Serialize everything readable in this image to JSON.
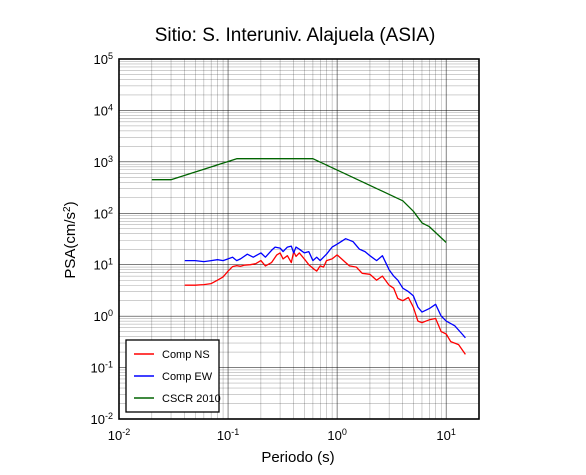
{
  "chart_data": {
    "type": "line",
    "title": "Sitio: S. Interuniv. Alajuela (ASIA)",
    "xlabel": "Periodo (s)",
    "ylabel": {
      "base": "PSA(cm/s",
      "sup": "2",
      "end": ")"
    },
    "x_scale": "log",
    "y_scale": "log",
    "xlim": [
      0.01,
      20
    ],
    "ylim": [
      0.01,
      100000
    ],
    "x_ticks": [
      {
        "value": 0.01,
        "base": "10",
        "exp": "-2"
      },
      {
        "value": 0.1,
        "base": "10",
        "exp": "-1"
      },
      {
        "value": 1,
        "base": "10",
        "exp": "0"
      },
      {
        "value": 10,
        "base": "10",
        "exp": "1"
      }
    ],
    "y_ticks": [
      {
        "value": 0.01,
        "base": "10",
        "exp": "-2"
      },
      {
        "value": 0.1,
        "base": "10",
        "exp": "-1"
      },
      {
        "value": 1,
        "base": "10",
        "exp": "0"
      },
      {
        "value": 10,
        "base": "10",
        "exp": "1"
      },
      {
        "value": 100,
        "base": "10",
        "exp": "2"
      },
      {
        "value": 1000,
        "base": "10",
        "exp": "3"
      },
      {
        "value": 10000,
        "base": "10",
        "exp": "4"
      },
      {
        "value": 100000,
        "base": "10",
        "exp": "5"
      }
    ],
    "grid": true,
    "legend_position": "bottom-left",
    "series": [
      {
        "name": "Comp NS",
        "color": "#ff0000",
        "points": [
          [
            0.04,
            4.0
          ],
          [
            0.05,
            4.0
          ],
          [
            0.06,
            4.1
          ],
          [
            0.07,
            4.3
          ],
          [
            0.08,
            5.0
          ],
          [
            0.09,
            5.8
          ],
          [
            0.1,
            7.5
          ],
          [
            0.11,
            9.2
          ],
          [
            0.12,
            9.6
          ],
          [
            0.13,
            9.3
          ],
          [
            0.14,
            9.8
          ],
          [
            0.16,
            10.0
          ],
          [
            0.18,
            10.5
          ],
          [
            0.2,
            12.0
          ],
          [
            0.22,
            9.5
          ],
          [
            0.25,
            11.0
          ],
          [
            0.28,
            15.5
          ],
          [
            0.3,
            17.0
          ],
          [
            0.32,
            13.0
          ],
          [
            0.35,
            15.0
          ],
          [
            0.38,
            11.0
          ],
          [
            0.4,
            18.0
          ],
          [
            0.42,
            14.5
          ],
          [
            0.45,
            17.0
          ],
          [
            0.5,
            13.0
          ],
          [
            0.55,
            10.0
          ],
          [
            0.6,
            8.5
          ],
          [
            0.65,
            7.5
          ],
          [
            0.7,
            9.5
          ],
          [
            0.75,
            9.0
          ],
          [
            0.8,
            12.0
          ],
          [
            0.9,
            13.0
          ],
          [
            1.0,
            15.5
          ],
          [
            1.1,
            13.0
          ],
          [
            1.2,
            11.0
          ],
          [
            1.3,
            9.5
          ],
          [
            1.5,
            9.0
          ],
          [
            1.7,
            6.8
          ],
          [
            2.0,
            6.5
          ],
          [
            2.3,
            5.0
          ],
          [
            2.6,
            6.0
          ],
          [
            3.0,
            4.0
          ],
          [
            3.3,
            3.5
          ],
          [
            3.6,
            2.2
          ],
          [
            4.0,
            2.0
          ],
          [
            4.5,
            2.3
          ],
          [
            5.0,
            1.5
          ],
          [
            5.5,
            0.8
          ],
          [
            6.0,
            0.75
          ],
          [
            7.0,
            0.85
          ],
          [
            8.0,
            0.9
          ],
          [
            9.0,
            0.5
          ],
          [
            10.0,
            0.45
          ],
          [
            11.0,
            0.32
          ],
          [
            13.0,
            0.28
          ],
          [
            15.0,
            0.18
          ]
        ]
      },
      {
        "name": "Comp EW",
        "color": "#0000ff",
        "points": [
          [
            0.04,
            12.0
          ],
          [
            0.05,
            12.0
          ],
          [
            0.06,
            11.5
          ],
          [
            0.07,
            12.0
          ],
          [
            0.08,
            12.5
          ],
          [
            0.09,
            12.0
          ],
          [
            0.1,
            13.0
          ],
          [
            0.11,
            14.0
          ],
          [
            0.12,
            12.0
          ],
          [
            0.13,
            13.0
          ],
          [
            0.15,
            16.0
          ],
          [
            0.17,
            14.0
          ],
          [
            0.2,
            17.0
          ],
          [
            0.22,
            14.0
          ],
          [
            0.25,
            19.0
          ],
          [
            0.27,
            22.0
          ],
          [
            0.3,
            21.0
          ],
          [
            0.32,
            18.0
          ],
          [
            0.35,
            22.0
          ],
          [
            0.38,
            23.0
          ],
          [
            0.4,
            17.0
          ],
          [
            0.42,
            22.0
          ],
          [
            0.45,
            20.0
          ],
          [
            0.5,
            17.0
          ],
          [
            0.55,
            18.0
          ],
          [
            0.6,
            12.0
          ],
          [
            0.65,
            14.0
          ],
          [
            0.7,
            12.0
          ],
          [
            0.8,
            16.0
          ],
          [
            0.9,
            22.0
          ],
          [
            1.0,
            25.0
          ],
          [
            1.2,
            32.0
          ],
          [
            1.4,
            28.0
          ],
          [
            1.6,
            20.0
          ],
          [
            1.8,
            18.0
          ],
          [
            2.0,
            15.0
          ],
          [
            2.3,
            12.0
          ],
          [
            2.6,
            15.0
          ],
          [
            3.0,
            8.0
          ],
          [
            3.3,
            6.0
          ],
          [
            3.6,
            5.0
          ],
          [
            4.0,
            3.5
          ],
          [
            4.5,
            3.0
          ],
          [
            5.0,
            2.5
          ],
          [
            5.5,
            1.5
          ],
          [
            6.0,
            1.2
          ],
          [
            7.0,
            1.4
          ],
          [
            8.0,
            1.7
          ],
          [
            9.0,
            1.0
          ],
          [
            10.0,
            0.8
          ],
          [
            12.0,
            0.65
          ],
          [
            14.0,
            0.45
          ],
          [
            15.0,
            0.38
          ]
        ]
      },
      {
        "name": "CSCR 2010",
        "color": "#006400",
        "points": [
          [
            0.02,
            450
          ],
          [
            0.03,
            450
          ],
          [
            0.12,
            1150
          ],
          [
            0.6,
            1150
          ],
          [
            4.0,
            175
          ],
          [
            5.0,
            110
          ],
          [
            6.0,
            65
          ],
          [
            7.0,
            55
          ],
          [
            10.0,
            27
          ]
        ]
      }
    ]
  }
}
